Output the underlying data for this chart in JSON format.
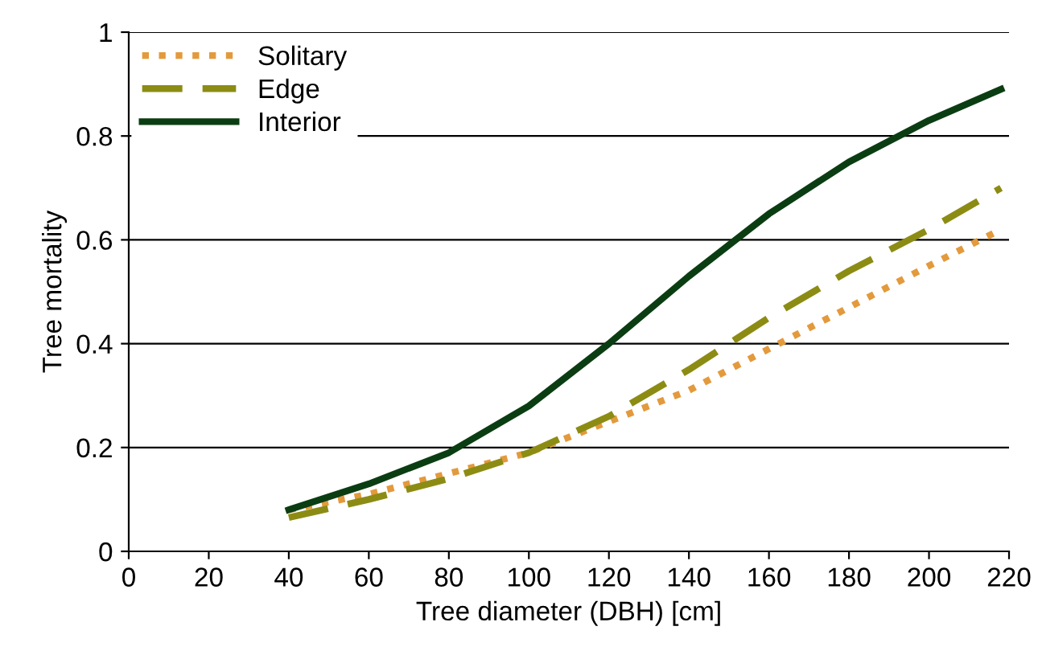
{
  "chart_data": {
    "type": "line",
    "xlabel": "Tree diameter (DBH) [cm]",
    "ylabel": "Tree mortality",
    "x": [
      40,
      60,
      80,
      100,
      120,
      140,
      160,
      180,
      200,
      218
    ],
    "series": [
      {
        "name": "Solitary",
        "color": "#e39a3c",
        "line_style": "dotted",
        "values": [
          0.08,
          0.11,
          0.15,
          0.19,
          0.25,
          0.31,
          0.39,
          0.47,
          0.55,
          0.62
        ]
      },
      {
        "name": "Edge",
        "color": "#8c8c14",
        "line_style": "dashed",
        "values": [
          0.065,
          0.1,
          0.14,
          0.19,
          0.26,
          0.35,
          0.45,
          0.54,
          0.62,
          0.7
        ]
      },
      {
        "name": "Interior",
        "color": "#0b3d12",
        "line_style": "solid",
        "values": [
          0.08,
          0.13,
          0.19,
          0.28,
          0.4,
          0.53,
          0.65,
          0.75,
          0.83,
          0.89
        ]
      }
    ],
    "xlim": [
      0,
      220
    ],
    "xticks": [
      0,
      20,
      40,
      60,
      80,
      100,
      120,
      140,
      160,
      180,
      200,
      220
    ],
    "ylim": [
      0,
      1
    ],
    "yticks": [
      0,
      0.2,
      0.4,
      0.6,
      0.8,
      1
    ],
    "grid": "y",
    "legend": "top left",
    "marker": "none"
  }
}
